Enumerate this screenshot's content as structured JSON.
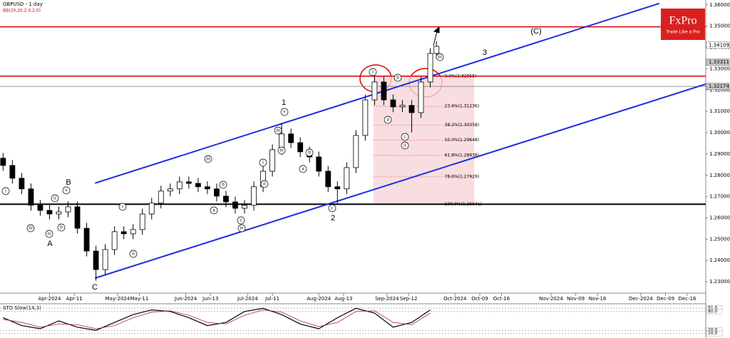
{
  "chart_data": {
    "type": "candlestick",
    "title": "GBPUSD - 1 day",
    "subtitle": "BB(20,20,2.0,2.0)",
    "x": [
      -15,
      -12,
      -9,
      -6,
      -3,
      0,
      3,
      6,
      9,
      12,
      15,
      18,
      21,
      24,
      27,
      30,
      33,
      36,
      39,
      42,
      45,
      48,
      51,
      54,
      57,
      60,
      63,
      66,
      69,
      72,
      75,
      78,
      81,
      84,
      87,
      90,
      93,
      96,
      99,
      102,
      105,
      108,
      111,
      114,
      117,
      120,
      123,
      125
    ],
    "open": [
      1.288,
      1.2846,
      1.2786,
      1.2736,
      1.2659,
      1.2635,
      1.2618,
      1.2628,
      1.2652,
      1.2551,
      1.2444,
      1.2357,
      1.2451,
      1.2535,
      1.2525,
      1.2545,
      1.2618,
      1.2669,
      1.2726,
      1.2736,
      1.2769,
      1.2762,
      1.2746,
      1.2736,
      1.2702,
      1.2675,
      1.2645,
      1.2659,
      1.2746,
      1.2819,
      1.292,
      1.2994,
      1.2953,
      1.291,
      1.2886,
      1.2819,
      1.2746,
      1.2736,
      1.2836,
      1.2987,
      1.3154,
      1.3238,
      1.3154,
      1.3121,
      1.3128,
      1.3094,
      1.3238,
      1.3372
    ],
    "high": [
      1.2905,
      1.2871,
      1.2811,
      1.2761,
      1.2684,
      1.266,
      1.2653,
      1.2677,
      1.2677,
      1.2576,
      1.2469,
      1.2476,
      1.256,
      1.256,
      1.257,
      1.2643,
      1.2694,
      1.2751,
      1.2761,
      1.2794,
      1.2794,
      1.2787,
      1.2771,
      1.2761,
      1.2727,
      1.27,
      1.2684,
      1.2771,
      1.2844,
      1.2945,
      1.3045,
      1.3019,
      1.2978,
      1.2935,
      1.2911,
      1.2844,
      1.2771,
      1.2861,
      1.3012,
      1.3179,
      1.3266,
      1.3263,
      1.3179,
      1.3153,
      1.3153,
      1.3263,
      1.3397,
      1.343
    ],
    "low": [
      1.2821,
      1.2761,
      1.2711,
      1.2634,
      1.261,
      1.2593,
      1.2593,
      1.2603,
      1.2526,
      1.2419,
      1.2305,
      1.2332,
      1.2426,
      1.25,
      1.25,
      1.252,
      1.2593,
      1.2644,
      1.2701,
      1.2711,
      1.2737,
      1.2721,
      1.2711,
      1.2677,
      1.265,
      1.262,
      1.262,
      1.2634,
      1.2721,
      1.2794,
      1.2895,
      1.2928,
      1.2885,
      1.2861,
      1.2794,
      1.2721,
      1.2665,
      1.2711,
      1.2811,
      1.2962,
      1.3129,
      1.3129,
      1.3096,
      1.3096,
      1.3002,
      1.3069,
      1.3213,
      1.3347
    ],
    "close": [
      1.2846,
      1.2786,
      1.2736,
      1.2659,
      1.2635,
      1.2618,
      1.2628,
      1.2652,
      1.2551,
      1.2444,
      1.2357,
      1.2451,
      1.2535,
      1.2525,
      1.2545,
      1.2618,
      1.2669,
      1.2726,
      1.2736,
      1.2769,
      1.2762,
      1.2746,
      1.2736,
      1.2702,
      1.2675,
      1.2645,
      1.2659,
      1.2746,
      1.2819,
      1.292,
      1.2994,
      1.2953,
      1.291,
      1.2886,
      1.2819,
      1.2746,
      1.2736,
      1.2836,
      1.2987,
      1.3154,
      1.3238,
      1.3154,
      1.3121,
      1.3128,
      1.3094,
      1.3238,
      1.3372,
      1.3405
    ],
    "xlim": [
      -16,
      212
    ],
    "xticks": [
      {
        "value": 0,
        "label": "Apr-2024"
      },
      {
        "value": 8,
        "label": "Apr-11"
      },
      {
        "value": 22,
        "label": "May-2024"
      },
      {
        "value": 29,
        "label": "May-11"
      },
      {
        "value": 44,
        "label": "Jun-2024"
      },
      {
        "value": 52,
        "label": "Jun-13"
      },
      {
        "value": 64,
        "label": "Jul-2024"
      },
      {
        "value": 72,
        "label": "Jul-11"
      },
      {
        "value": 87,
        "label": "Aug-2024"
      },
      {
        "value": 95,
        "label": "Aug-13"
      },
      {
        "value": 109,
        "label": "Sep-2024"
      },
      {
        "value": 116,
        "label": "Sep-12"
      },
      {
        "value": 131,
        "label": "Oct-2024"
      },
      {
        "value": 139,
        "label": "Oct-09"
      },
      {
        "value": 146,
        "label": "Oct-16"
      },
      {
        "value": 162,
        "label": "Nov-2024"
      },
      {
        "value": 170,
        "label": "Nov-09"
      },
      {
        "value": 177,
        "label": "Nov-16"
      },
      {
        "value": 191,
        "label": "Dec-2024"
      },
      {
        "value": 199,
        "label": "Dec-09"
      },
      {
        "value": 206,
        "label": "Dec-16"
      }
    ],
    "ylim": [
      1.225,
      1.3623
    ],
    "yticks": [
      {
        "value": 1.36,
        "label": "1.36000"
      },
      {
        "value": 1.35,
        "label": "1.35000"
      },
      {
        "value": 1.34,
        "label": "1.34000"
      },
      {
        "value": 1.33,
        "label": "1.33000"
      },
      {
        "value": 1.32,
        "label": "1.32000"
      },
      {
        "value": 1.31,
        "label": "1.31000"
      },
      {
        "value": 1.3,
        "label": "1.30000"
      },
      {
        "value": 1.29,
        "label": "1.29000"
      },
      {
        "value": 1.28,
        "label": "1.28000"
      },
      {
        "value": 1.27,
        "label": "1.27000"
      },
      {
        "value": 1.26,
        "label": "1.26000"
      },
      {
        "value": 1.25,
        "label": "1.25000"
      },
      {
        "value": 1.24,
        "label": "1.24000"
      },
      {
        "value": 1.23,
        "label": "1.23000"
      }
    ],
    "price_marks": [
      {
        "value": 1.34109,
        "label": "1.34109"
      },
      {
        "value": 1.33311,
        "label": "1.33311"
      },
      {
        "value": 1.32174,
        "label": "1.32174"
      }
    ],
    "levels": [
      {
        "value": 1.3497,
        "color": "#d40000"
      },
      {
        "value": 1.32655,
        "color": "#d40000"
      },
      {
        "value": 1.26641,
        "color": "#000000"
      },
      {
        "value": 1.32174,
        "color": "#777777"
      }
    ],
    "channels": [
      {
        "color": "#1a2ee0",
        "x": [
          14.7,
          197
        ],
        "y": [
          1.2763,
          1.3607
        ]
      },
      {
        "color": "#1a2ee0",
        "x": [
          14.7,
          212
        ],
        "y": [
          1.2317,
          1.3228
        ]
      }
    ],
    "fibonacci": {
      "x": [
        104.6,
        137.2
      ],
      "levels": [
        {
          "value": 1.32655,
          "label": "0.0%(1.32655)"
        },
        {
          "value": 1.31236,
          "label": "23.6%(1.31236)"
        },
        {
          "value": 1.30358,
          "label": "38.2%(1.30358)"
        },
        {
          "value": 1.29648,
          "label": "50.0%(1.29648)"
        },
        {
          "value": 1.28938,
          "label": "61.8%(1.28938)"
        },
        {
          "value": 1.27929,
          "label": "78.6%(1.27929)"
        },
        {
          "value": 1.26641,
          "label": "100.0%(1.26641)"
        }
      ]
    },
    "wave_labels": [
      "(C)",
      "3",
      "1",
      "2",
      "A",
      "B",
      "C",
      "i",
      "ii",
      "iii",
      "a",
      "b",
      "c",
      "c",
      "v",
      "iv",
      "iii",
      "ii",
      "i",
      "a",
      "b",
      "a",
      "b",
      "c",
      "iv",
      "iii",
      "i",
      "ii",
      "i",
      "ii",
      "iii",
      "iv",
      "v",
      "b"
    ],
    "indicator": {
      "title": "STO Slow(14,3)",
      "x": [
        -15,
        -9,
        -3,
        3,
        9,
        15,
        21,
        27,
        33,
        39,
        45,
        51,
        57,
        63,
        69,
        75,
        81,
        87,
        93,
        99,
        105,
        111,
        117,
        123
      ],
      "series": [
        {
          "color": "#000000",
          "values": [
            60,
            35,
            25,
            50,
            30,
            20,
            45,
            70,
            85,
            80,
            60,
            35,
            45,
            80,
            90,
            70,
            40,
            25,
            60,
            90,
            75,
            30,
            45,
            85
          ]
        },
        {
          "color": "#b03030",
          "values": [
            55,
            45,
            30,
            40,
            38,
            25,
            35,
            60,
            78,
            82,
            68,
            45,
            40,
            68,
            85,
            78,
            50,
            32,
            45,
            80,
            82,
            45,
            38,
            75
          ]
        }
      ],
      "ylim": [
        0,
        100
      ],
      "yticks": [
        {
          "value": 91,
          "label": "91.0"
        },
        {
          "value": 80,
          "label": "80.0"
        },
        {
          "value": 20,
          "label": "20.0"
        },
        {
          "value": 10,
          "label": "10.0"
        }
      ]
    }
  },
  "logo": {
    "name": "FxPro",
    "tagline": "Trade Like a Pro"
  }
}
